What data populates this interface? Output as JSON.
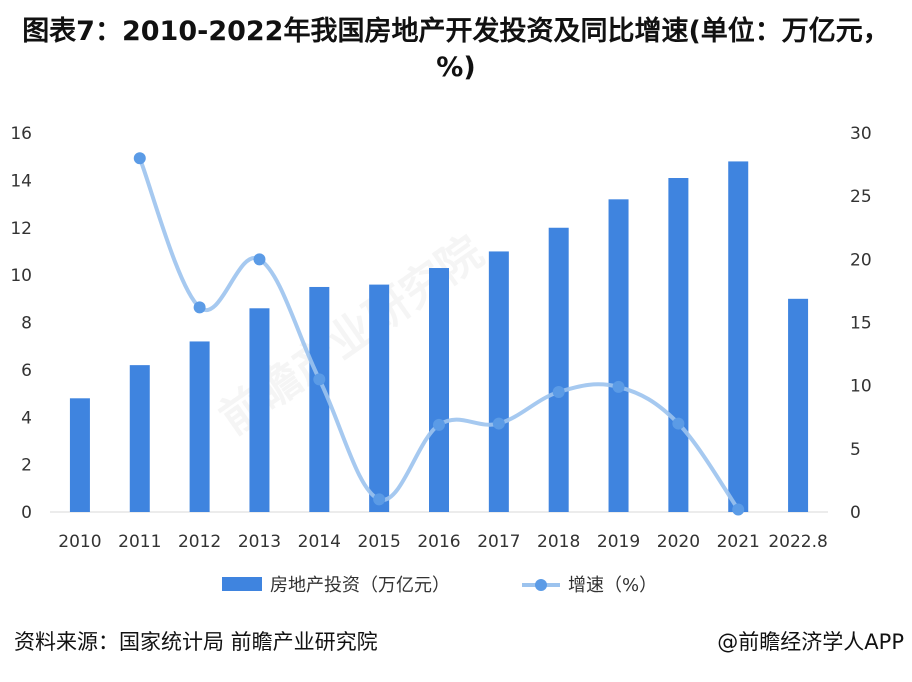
{
  "title": "图表7：2010-2022年我国房地产开发投资及同比增速(单位：万亿元，%)",
  "source": "资料来源：国家统计局 前瞻产业研究院",
  "credit": "@前瞻经济学人APP",
  "watermark": "前瞻产业研究院",
  "chart_data": {
    "type": "bar",
    "categories": [
      "2010",
      "2011",
      "2012",
      "2013",
      "2014",
      "2015",
      "2016",
      "2017",
      "2018",
      "2019",
      "2020",
      "2021",
      "2022.8"
    ],
    "series": [
      {
        "name": "房地产投资（万亿元）",
        "type": "bar",
        "axis": "left",
        "values": [
          4.8,
          6.2,
          7.2,
          8.6,
          9.5,
          9.6,
          10.3,
          11.0,
          12.0,
          13.2,
          14.1,
          14.8,
          9.0
        ],
        "color": "#3f84df"
      },
      {
        "name": "增速（%）",
        "type": "line",
        "axis": "right",
        "values": [
          null,
          28.0,
          16.2,
          20.0,
          10.5,
          1.0,
          6.9,
          7.0,
          9.5,
          9.9,
          7.0,
          0.2,
          null
        ],
        "color": "#9cc3ee"
      }
    ],
    "y_left": {
      "ticks": [
        0,
        2,
        4,
        6,
        8,
        10,
        12,
        14,
        16
      ],
      "range": [
        0,
        16
      ]
    },
    "y_right": {
      "ticks": [
        0,
        5,
        10,
        15,
        20,
        25,
        30
      ],
      "range": [
        0,
        30
      ]
    },
    "legend": {
      "position": "bottom",
      "items": [
        "房地产投资（万亿元）",
        "增速（%）"
      ]
    }
  }
}
